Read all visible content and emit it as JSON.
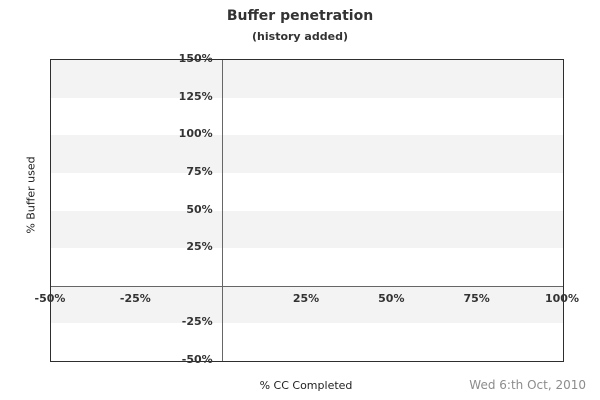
{
  "chart_data": {
    "type": "line",
    "title": "Buffer penetration",
    "subtitle": "(history added)",
    "xlabel": "% CC Completed",
    "ylabel": "% Buffer used",
    "date_note": "Wed 6:th Oct, 2010",
    "xlim": [
      -50,
      100
    ],
    "ylim": [
      -50,
      150
    ],
    "x_ticks": [
      {
        "value": -50,
        "label": "-50%"
      },
      {
        "value": -25,
        "label": "-25%"
      },
      {
        "value": 25,
        "label": "25%"
      },
      {
        "value": 50,
        "label": "50%"
      },
      {
        "value": 75,
        "label": "75%"
      },
      {
        "value": 100,
        "label": "100%"
      }
    ],
    "y_ticks": [
      {
        "value": 150,
        "label": "150%"
      },
      {
        "value": 125,
        "label": "125%"
      },
      {
        "value": 100,
        "label": "100%"
      },
      {
        "value": 75,
        "label": "75%"
      },
      {
        "value": 50,
        "label": "50%"
      },
      {
        "value": 25,
        "label": "25%"
      },
      {
        "value": -25,
        "label": "-25%"
      },
      {
        "value": -50,
        "label": "-50%"
      }
    ],
    "series": [],
    "grid": "horizontal-bands-alternating",
    "band_step": 25,
    "legend": false,
    "axis_cross": {
      "x": 0,
      "y": 0
    },
    "colors": {
      "band_gray": "#f3f3f3",
      "band_white": "#ffffff",
      "plot_border": "#2e2e2e",
      "zero_axis_line": "#666666",
      "tick_text": "#333333",
      "title_text": "#333333",
      "axis_title_text": "#222222",
      "date_text": "#8c8c8c",
      "background": "#ffffff"
    }
  }
}
